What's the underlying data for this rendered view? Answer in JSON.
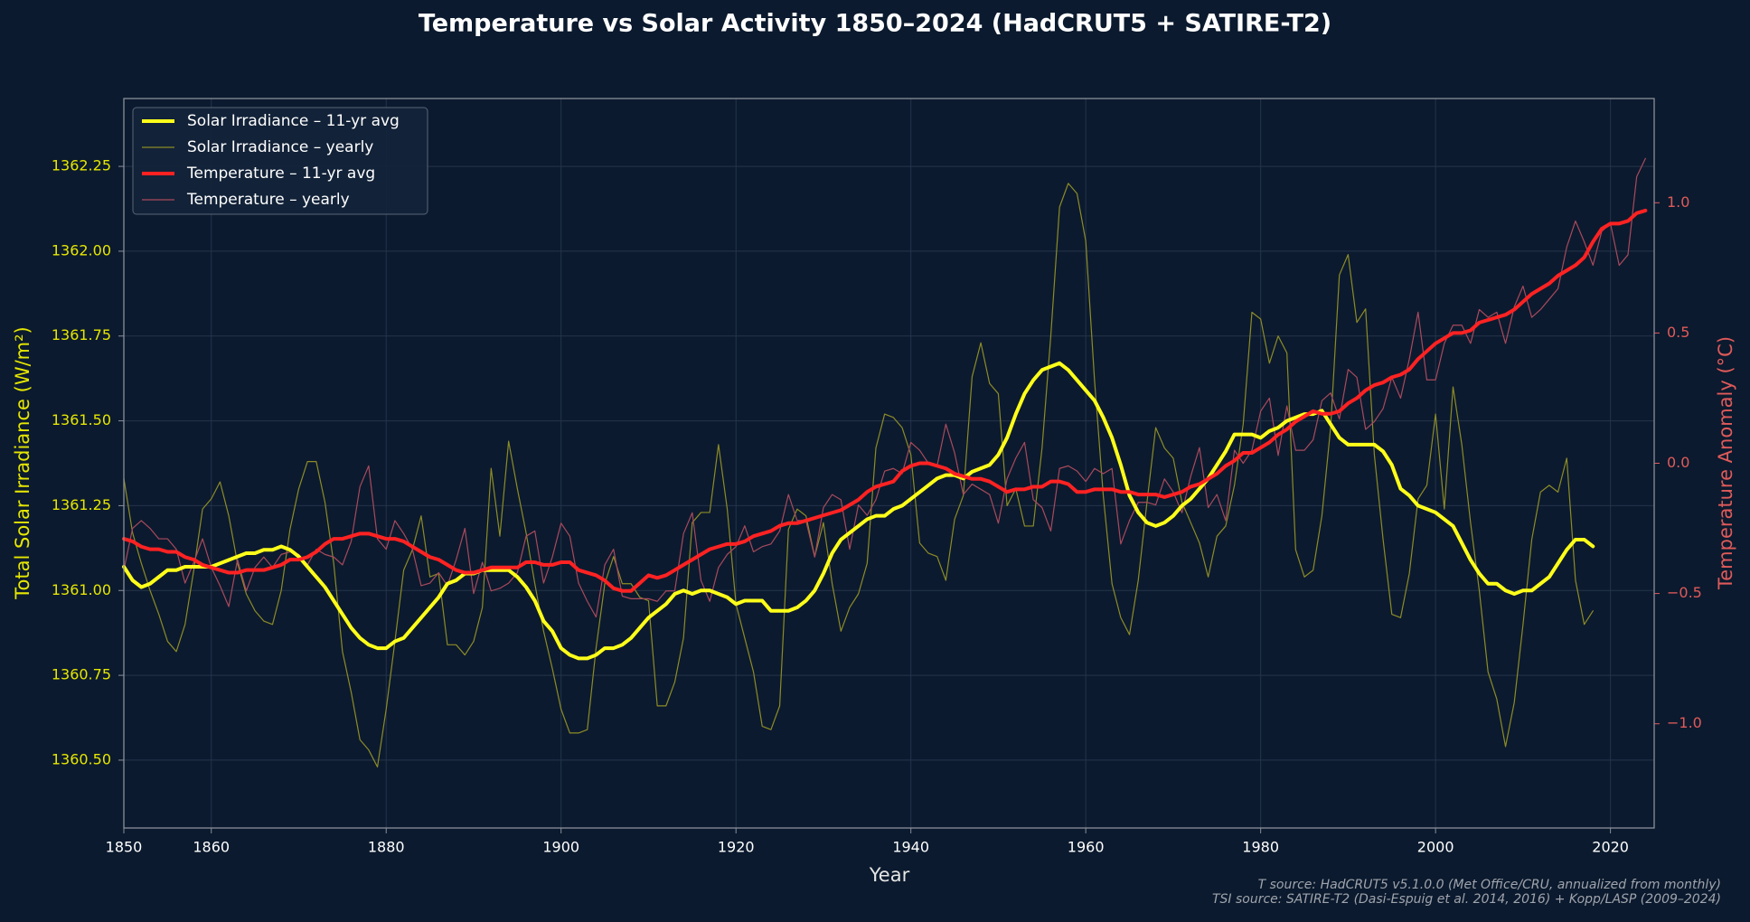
{
  "chart_data": {
    "type": "line",
    "title": "Temperature vs Solar Activity  1850–2024 (HadCRUT5 + SATIRE-T2)",
    "xlabel": "Year",
    "ylabel": "Total Solar Irradiance (W/m²)",
    "y2label": "Temperature Anomaly (°C)",
    "sources": [
      "T source: HadCRUT5 v5.1.0.0 (Met Office/CRU, annualized from monthly)",
      "TSI source: SATIRE-T2 (Dasi-Espuig et al. 2014, 2016) + Kopp/LASP (2009–2024)"
    ],
    "xlim": [
      1850,
      2025
    ],
    "xticks": [
      1850,
      1860,
      1880,
      1900,
      1920,
      1940,
      1960,
      1980,
      2000,
      2020
    ],
    "ylim": [
      1360.3,
      1362.45
    ],
    "yticks": [
      {
        "value": 1360.5,
        "label": "1360.50"
      },
      1360.75,
      {
        "value": 1361,
        "label": "1361.00"
      },
      1361.25,
      {
        "value": 1361.5,
        "label": "1361.50"
      },
      1361.75,
      {
        "value": 1362,
        "label": "1362.00"
      },
      1362.25
    ],
    "y2lim": [
      -1.4,
      1.4
    ],
    "y2ticks": [
      {
        "value": -1,
        "label": "−1.0"
      },
      {
        "value": -0.5,
        "label": "−0.5"
      },
      {
        "value": 0,
        "label": "0.0"
      },
      0.5,
      {
        "value": 1,
        "label": "1.0"
      }
    ],
    "grid": true,
    "legend": "upper left",
    "x": [
      1850,
      1851,
      1852,
      1853,
      1854,
      1855,
      1856,
      1857,
      1858,
      1859,
      1860,
      1861,
      1862,
      1863,
      1864,
      1865,
      1866,
      1867,
      1868,
      1869,
      1870,
      1871,
      1872,
      1873,
      1874,
      1875,
      1876,
      1877,
      1878,
      1879,
      1880,
      1881,
      1882,
      1883,
      1884,
      1885,
      1886,
      1887,
      1888,
      1889,
      1890,
      1891,
      1892,
      1893,
      1894,
      1895,
      1896,
      1897,
      1898,
      1899,
      1900,
      1901,
      1902,
      1903,
      1904,
      1905,
      1906,
      1907,
      1908,
      1909,
      1910,
      1911,
      1912,
      1913,
      1914,
      1915,
      1916,
      1917,
      1918,
      1919,
      1920,
      1921,
      1922,
      1923,
      1924,
      1925,
      1926,
      1927,
      1928,
      1929,
      1930,
      1931,
      1932,
      1933,
      1934,
      1935,
      1936,
      1937,
      1938,
      1939,
      1940,
      1941,
      1942,
      1943,
      1944,
      1945,
      1946,
      1947,
      1948,
      1949,
      1950,
      1951,
      1952,
      1953,
      1954,
      1955,
      1956,
      1957,
      1958,
      1959,
      1960,
      1961,
      1962,
      1963,
      1964,
      1965,
      1966,
      1967,
      1968,
      1969,
      1970,
      1971,
      1972,
      1973,
      1974,
      1975,
      1976,
      1977,
      1978,
      1979,
      1980,
      1981,
      1982,
      1983,
      1984,
      1985,
      1986,
      1987,
      1988,
      1989,
      1990,
      1991,
      1992,
      1993,
      1994,
      1995,
      1996,
      1997,
      1998,
      1999,
      2000,
      2001,
      2002,
      2003,
      2004,
      2005,
      2006,
      2007,
      2008,
      2009,
      2010,
      2011,
      2012,
      2013,
      2014,
      2015,
      2016,
      2017,
      2018,
      2019,
      2020,
      2021,
      2022,
      2023,
      2024
    ],
    "series": [
      {
        "name": "Solar Irradiance – 11-yr avg",
        "color": "#ffff1a",
        "linewidth": 4,
        "axis": "y",
        "values": [
          1361.07,
          1361.03,
          1361.01,
          1361.02,
          1361.04,
          1361.06,
          1361.06,
          1361.07,
          1361.07,
          1361.07,
          1361.07,
          1361.08,
          1361.09,
          1361.1,
          1361.11,
          1361.11,
          1361.12,
          1361.12,
          1361.13,
          1361.12,
          1361.1,
          1361.07,
          1361.04,
          1361.01,
          1360.97,
          1360.93,
          1360.89,
          1360.86,
          1360.84,
          1360.83,
          1360.83,
          1360.85,
          1360.86,
          1360.89,
          1360.92,
          1360.95,
          1360.98,
          1361.02,
          1361.03,
          1361.05,
          1361.05,
          1361.06,
          1361.06,
          1361.06,
          1361.06,
          1361.04,
          1361.01,
          1360.97,
          1360.91,
          1360.88,
          1360.83,
          1360.81,
          1360.8,
          1360.8,
          1360.81,
          1360.83,
          1360.83,
          1360.84,
          1360.86,
          1360.89,
          1360.92,
          1360.94,
          1360.96,
          1360.99,
          1361.0,
          1360.99,
          1361.0,
          1361.0,
          1360.99,
          1360.98,
          1360.96,
          1360.97,
          1360.97,
          1360.97,
          1360.94,
          1360.94,
          1360.94,
          1360.95,
          1360.97,
          1361.0,
          1361.05,
          1361.11,
          1361.15,
          1361.17,
          1361.19,
          1361.21,
          1361.22,
          1361.22,
          1361.24,
          1361.25,
          1361.27,
          1361.29,
          1361.31,
          1361.33,
          1361.34,
          1361.34,
          1361.33,
          1361.35,
          1361.36,
          1361.37,
          1361.4,
          1361.45,
          1361.52,
          1361.58,
          1361.62,
          1361.65,
          1361.66,
          1361.67,
          1361.65,
          1361.62,
          1361.59,
          1361.56,
          1361.51,
          1361.45,
          1361.37,
          1361.28,
          1361.23,
          1361.2,
          1361.19,
          1361.2,
          1361.22,
          1361.25,
          1361.27,
          1361.3,
          1361.33,
          1361.37,
          1361.41,
          1361.46,
          1361.46,
          1361.46,
          1361.45,
          1361.47,
          1361.48,
          1361.5,
          1361.51,
          1361.52,
          1361.52,
          1361.53,
          1361.49,
          1361.45,
          1361.43,
          1361.43,
          1361.43,
          1361.43,
          1361.41,
          1361.37,
          1361.3,
          1361.28,
          1361.25,
          1361.24,
          1361.23,
          1361.21,
          1361.19,
          1361.14,
          1361.09,
          1361.05,
          1361.02,
          1361.02,
          1361.0,
          1360.99,
          1361.0,
          1361.0,
          1361.02,
          1361.04,
          1361.08,
          1361.12,
          1361.15,
          1361.15,
          1361.13,
          null,
          null,
          null,
          null,
          null,
          null
        ]
      },
      {
        "name": "Solar Irradiance – yearly",
        "color": "#8c8c26",
        "linewidth": 1.2,
        "axis": "y",
        "values": [
          1361.33,
          1361.17,
          1361.08,
          1361.0,
          1360.93,
          1360.85,
          1360.82,
          1360.9,
          1361.06,
          1361.24,
          1361.27,
          1361.32,
          1361.22,
          1361.08,
          1360.99,
          1360.94,
          1360.91,
          1360.9,
          1361.0,
          1361.18,
          1361.3,
          1361.38,
          1361.38,
          1361.26,
          1361.08,
          1360.82,
          1360.7,
          1360.56,
          1360.53,
          1360.48,
          1360.65,
          1360.85,
          1361.06,
          1361.12,
          1361.22,
          1361.04,
          1361.05,
          1360.84,
          1360.84,
          1360.81,
          1360.85,
          1360.95,
          1361.36,
          1361.16,
          1361.44,
          1361.3,
          1361.17,
          1361.02,
          1360.88,
          1360.77,
          1360.65,
          1360.58,
          1360.58,
          1360.59,
          1360.83,
          1361.02,
          1361.1,
          1361.02,
          1361.02,
          1360.98,
          1360.97,
          1360.66,
          1360.66,
          1360.73,
          1360.86,
          1361.2,
          1361.23,
          1361.23,
          1361.43,
          1361.24,
          1360.96,
          1360.86,
          1360.76,
          1360.6,
          1360.59,
          1360.66,
          1361.18,
          1361.24,
          1361.22,
          1361.1,
          1361.2,
          1361.02,
          1360.88,
          1360.95,
          1360.99,
          1361.08,
          1361.42,
          1361.52,
          1361.51,
          1361.48,
          1361.4,
          1361.14,
          1361.11,
          1361.1,
          1361.03,
          1361.21,
          1361.28,
          1361.63,
          1361.73,
          1361.61,
          1361.58,
          1361.25,
          1361.3,
          1361.19,
          1361.19,
          1361.42,
          1361.75,
          1362.13,
          1362.2,
          1362.17,
          1362.03,
          1361.62,
          1361.28,
          1361.02,
          1360.92,
          1360.87,
          1361.03,
          1361.26,
          1361.48,
          1361.42,
          1361.39,
          1361.26,
          1361.2,
          1361.14,
          1361.04,
          1361.16,
          1361.19,
          1361.31,
          1361.49,
          1361.82,
          1361.8,
          1361.67,
          1361.75,
          1361.7,
          1361.12,
          1361.04,
          1361.06,
          1361.22,
          1361.48,
          1361.93,
          1361.99,
          1361.79,
          1361.83,
          1361.4,
          1361.15,
          1360.93,
          1360.92,
          1361.05,
          1361.27,
          1361.31,
          1361.52,
          1361.24,
          1361.6,
          1361.43,
          1361.2,
          1361.0,
          1360.76,
          1360.68,
          1360.54,
          1360.67,
          1360.9,
          1361.15,
          1361.29,
          1361.31,
          1361.29,
          1361.39,
          1361.03,
          1360.9,
          1360.94,
          null,
          null,
          null,
          null,
          null,
          null
        ]
      },
      {
        "name": "Temperature – 11-yr avg",
        "color": "#ff2222",
        "linewidth": 4,
        "axis": "y2",
        "values": [
          -0.29,
          -0.3,
          -0.32,
          -0.33,
          -0.33,
          -0.34,
          -0.34,
          -0.36,
          -0.37,
          -0.39,
          -0.4,
          -0.41,
          -0.42,
          -0.42,
          -0.41,
          -0.41,
          -0.41,
          -0.4,
          -0.39,
          -0.37,
          -0.37,
          -0.36,
          -0.34,
          -0.31,
          -0.29,
          -0.29,
          -0.28,
          -0.27,
          -0.27,
          -0.28,
          -0.29,
          -0.29,
          -0.3,
          -0.32,
          -0.34,
          -0.36,
          -0.37,
          -0.39,
          -0.41,
          -0.42,
          -0.42,
          -0.41,
          -0.4,
          -0.4,
          -0.4,
          -0.4,
          -0.38,
          -0.38,
          -0.39,
          -0.39,
          -0.38,
          -0.38,
          -0.41,
          -0.42,
          -0.43,
          -0.45,
          -0.48,
          -0.49,
          -0.49,
          -0.46,
          -0.43,
          -0.44,
          -0.43,
          -0.41,
          -0.39,
          -0.37,
          -0.35,
          -0.33,
          -0.32,
          -0.31,
          -0.31,
          -0.3,
          -0.28,
          -0.27,
          -0.26,
          -0.24,
          -0.23,
          -0.23,
          -0.22,
          -0.21,
          -0.2,
          -0.19,
          -0.18,
          -0.16,
          -0.14,
          -0.11,
          -0.09,
          -0.08,
          -0.07,
          -0.03,
          -0.01,
          0.0,
          0.0,
          -0.01,
          -0.02,
          -0.04,
          -0.05,
          -0.06,
          -0.06,
          -0.07,
          -0.09,
          -0.11,
          -0.1,
          -0.1,
          -0.09,
          -0.09,
          -0.07,
          -0.07,
          -0.08,
          -0.11,
          -0.11,
          -0.1,
          -0.1,
          -0.1,
          -0.11,
          -0.11,
          -0.12,
          -0.12,
          -0.12,
          -0.13,
          -0.12,
          -0.11,
          -0.09,
          -0.08,
          -0.06,
          -0.04,
          -0.01,
          0.01,
          0.04,
          0.04,
          0.06,
          0.08,
          0.11,
          0.13,
          0.16,
          0.18,
          0.2,
          0.19,
          0.19,
          0.2,
          0.23,
          0.25,
          0.28,
          0.3,
          0.31,
          0.33,
          0.34,
          0.36,
          0.4,
          0.43,
          0.46,
          0.48,
          0.5,
          0.5,
          0.51,
          0.54,
          0.55,
          0.56,
          0.57,
          0.59,
          0.62,
          0.65,
          0.67,
          0.69,
          0.72,
          0.74,
          0.76,
          0.79,
          0.85,
          0.9,
          0.92,
          0.92,
          0.93,
          0.96,
          0.97
        ]
      },
      {
        "name": "Temperature – yearly",
        "color": "#a84a5c",
        "linewidth": 1.2,
        "axis": "y2",
        "values": [
          -0.41,
          -0.25,
          -0.22,
          -0.25,
          -0.29,
          -0.29,
          -0.33,
          -0.46,
          -0.38,
          -0.29,
          -0.4,
          -0.47,
          -0.55,
          -0.37,
          -0.49,
          -0.4,
          -0.36,
          -0.4,
          -0.35,
          -0.34,
          -0.35,
          -0.39,
          -0.33,
          -0.35,
          -0.36,
          -0.39,
          -0.3,
          -0.09,
          -0.01,
          -0.29,
          -0.33,
          -0.22,
          -0.27,
          -0.33,
          -0.47,
          -0.46,
          -0.42,
          -0.47,
          -0.37,
          -0.25,
          -0.5,
          -0.38,
          -0.49,
          -0.48,
          -0.46,
          -0.42,
          -0.28,
          -0.26,
          -0.46,
          -0.36,
          -0.23,
          -0.28,
          -0.46,
          -0.53,
          -0.59,
          -0.39,
          -0.33,
          -0.51,
          -0.52,
          -0.52,
          -0.52,
          -0.53,
          -0.49,
          -0.49,
          -0.27,
          -0.19,
          -0.45,
          -0.53,
          -0.4,
          -0.35,
          -0.32,
          -0.24,
          -0.34,
          -0.32,
          -0.31,
          -0.26,
          -0.12,
          -0.22,
          -0.22,
          -0.36,
          -0.17,
          -0.12,
          -0.14,
          -0.33,
          -0.16,
          -0.2,
          -0.14,
          -0.03,
          -0.02,
          -0.04,
          0.08,
          0.05,
          0.0,
          -0.01,
          0.15,
          0.04,
          -0.12,
          -0.08,
          -0.1,
          -0.12,
          -0.23,
          -0.06,
          0.02,
          0.08,
          -0.14,
          -0.17,
          -0.26,
          -0.02,
          -0.01,
          -0.03,
          -0.07,
          -0.02,
          -0.04,
          -0.02,
          -0.31,
          -0.22,
          -0.15,
          -0.15,
          -0.16,
          -0.06,
          -0.11,
          -0.19,
          -0.05,
          0.06,
          -0.17,
          -0.12,
          -0.22,
          0.05,
          0.0,
          0.05,
          0.2,
          0.25,
          0.03,
          0.22,
          0.05,
          0.05,
          0.09,
          0.24,
          0.27,
          0.17,
          0.36,
          0.33,
          0.13,
          0.16,
          0.21,
          0.33,
          0.25,
          0.4,
          0.58,
          0.32,
          0.32,
          0.46,
          0.53,
          0.53,
          0.46,
          0.59,
          0.56,
          0.58,
          0.46,
          0.6,
          0.68,
          0.56,
          0.59,
          0.63,
          0.67,
          0.83,
          0.93,
          0.85,
          0.76,
          0.89,
          0.92,
          0.76,
          0.8,
          1.1,
          1.17
        ]
      }
    ]
  }
}
